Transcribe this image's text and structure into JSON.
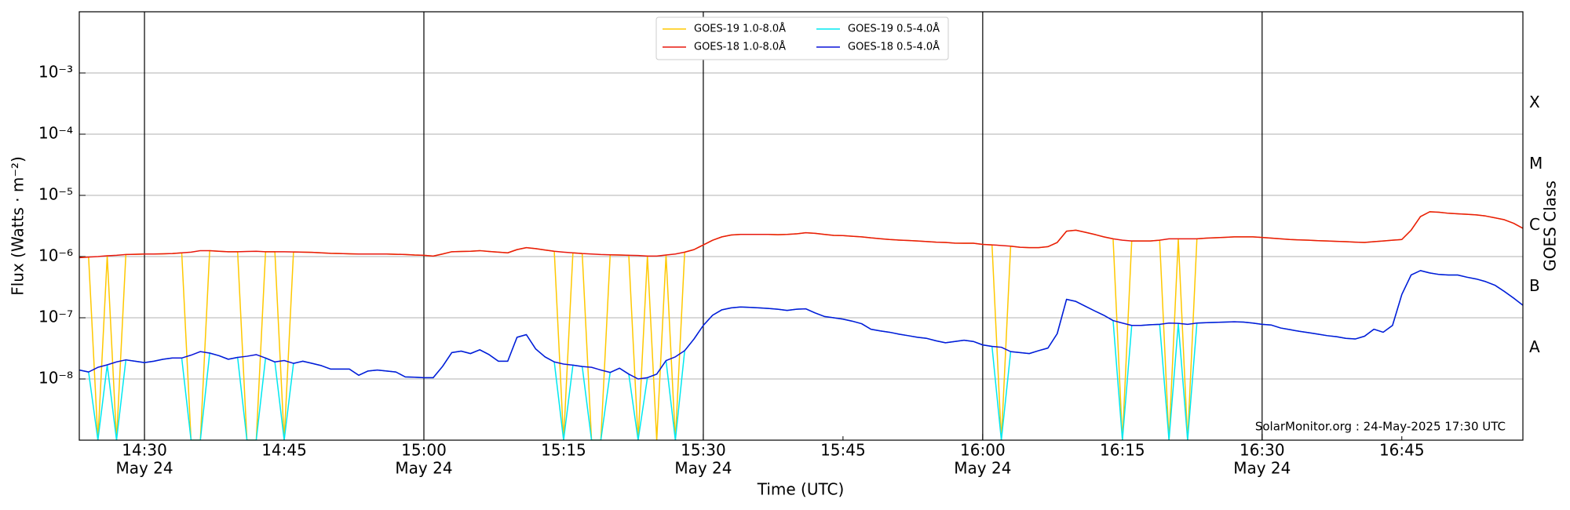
{
  "chart_data": {
    "type": "line",
    "xlabel": "Time (UTC)",
    "ylabel": "Flux (Watts · m⁻²)",
    "y2label": "GOES Class",
    "annotation": "SolarMonitor.org : 24-May-2025 17:30 UTC",
    "log_y": true,
    "grid": true,
    "legend": "upper center",
    "xlim": [
      "14:23",
      "16:58"
    ],
    "xticks": [
      "14:30",
      "14:45",
      "15:00",
      "15:15",
      "15:30",
      "15:45",
      "16:00",
      "16:15",
      "16:30",
      "16:45"
    ],
    "xtick_dates": [
      "May 24",
      null,
      "May 24",
      null,
      "May 24",
      null,
      "May 24",
      null,
      "May 24",
      null
    ],
    "ylim": [
      1e-09,
      0.01
    ],
    "yticks": [
      {
        "value": 1e-08,
        "label": "10⁻⁸"
      },
      {
        "value": 1e-07,
        "label": "10⁻⁷"
      },
      {
        "value": 1e-06,
        "label": "10⁻⁶"
      },
      {
        "value": 1e-05,
        "label": "10⁻⁵"
      },
      {
        "value": 0.0001,
        "label": "10⁻⁴"
      },
      {
        "value": 0.001,
        "label": "10⁻³"
      }
    ],
    "y2lim": [
      1e-09,
      0.01
    ],
    "y2ticks": [
      {
        "value": 3.2e-08,
        "label": "A"
      },
      {
        "value": 3.2e-07,
        "label": "B"
      },
      {
        "value": 3.2e-06,
        "label": "C"
      },
      {
        "value": 3.2e-05,
        "label": "M"
      },
      {
        "value": 0.00032,
        "label": "X"
      }
    ],
    "x": [
      "14:23",
      "14:24",
      "14:25",
      "14:26",
      "14:27",
      "14:28",
      "14:29",
      "14:30",
      "14:31",
      "14:32",
      "14:33",
      "14:34",
      "14:35",
      "14:36",
      "14:37",
      "14:38",
      "14:39",
      "14:40",
      "14:41",
      "14:42",
      "14:43",
      "14:44",
      "14:45",
      "14:46",
      "14:47",
      "14:48",
      "14:49",
      "14:50",
      "14:51",
      "14:52",
      "14:53",
      "14:54",
      "14:55",
      "14:56",
      "14:57",
      "14:58",
      "14:59",
      "15:00",
      "15:01",
      "15:02",
      "15:03",
      "15:04",
      "15:05",
      "15:06",
      "15:07",
      "15:08",
      "15:09",
      "15:10",
      "15:11",
      "15:12",
      "15:13",
      "15:14",
      "15:15",
      "15:16",
      "15:17",
      "15:18",
      "15:19",
      "15:20",
      "15:21",
      "15:22",
      "15:23",
      "15:24",
      "15:25",
      "15:26",
      "15:27",
      "15:28",
      "15:29",
      "15:30",
      "15:31",
      "15:32",
      "15:33",
      "15:34",
      "15:35",
      "15:36",
      "15:37",
      "15:38",
      "15:39",
      "15:40",
      "15:41",
      "15:42",
      "15:43",
      "15:44",
      "15:45",
      "15:46",
      "15:47",
      "15:48",
      "15:49",
      "15:50",
      "15:51",
      "15:52",
      "15:53",
      "15:54",
      "15:55",
      "15:56",
      "15:57",
      "15:58",
      "15:59",
      "16:00",
      "16:01",
      "16:02",
      "16:03",
      "16:04",
      "16:05",
      "16:06",
      "16:07",
      "16:08",
      "16:09",
      "16:10",
      "16:11",
      "16:12",
      "16:13",
      "16:14",
      "16:15",
      "16:16",
      "16:17",
      "16:18",
      "16:19",
      "16:20",
      "16:21",
      "16:22",
      "16:23",
      "16:24",
      "16:25",
      "16:26",
      "16:27",
      "16:28",
      "16:29",
      "16:30",
      "16:31",
      "16:32",
      "16:33",
      "16:34",
      "16:35",
      "16:36",
      "16:37",
      "16:38",
      "16:39",
      "16:40",
      "16:41",
      "16:42",
      "16:43",
      "16:44",
      "16:45",
      "16:46",
      "16:47",
      "16:48",
      "16:49",
      "16:50",
      "16:51",
      "16:52",
      "16:53",
      "16:54",
      "16:55",
      "16:56",
      "16:57",
      "16:58"
    ],
    "series": [
      {
        "name": "GOES-19 1.0-8.0Å",
        "color": "#ffc800",
        "values": [
          9.6e-07,
          9.8e-07,
          1e-09,
          1.03e-06,
          1e-09,
          1.08e-06,
          1.09e-06,
          1.1e-06,
          1.1e-06,
          1.11e-06,
          1.12e-06,
          1.15e-06,
          1e-09,
          1e-09,
          1.25e-06,
          1.22e-06,
          1.2e-06,
          1.2e-06,
          1e-09,
          1e-09,
          1.2e-06,
          1.2e-06,
          1e-09,
          1.19e-06,
          1.18e-06,
          1.17e-06,
          1.15e-06,
          1.13e-06,
          1.12e-06,
          1.11e-06,
          1.1e-06,
          1.1e-06,
          1.1e-06,
          1.1e-06,
          1.09e-06,
          1.08e-06,
          1.06e-06,
          1.05e-06,
          1.02e-06,
          1.1e-06,
          1.2e-06,
          1.21e-06,
          1.22e-06,
          1.25e-06,
          1.21e-06,
          1.18e-06,
          1.15e-06,
          1.3e-06,
          1.4e-06,
          1.35e-06,
          1.28e-06,
          1.22e-06,
          1e-09,
          1.15e-06,
          1.12e-06,
          1e-09,
          1e-09,
          1.07e-06,
          1.06e-06,
          1.05e-06,
          1e-09,
          1.02e-06,
          1e-09,
          1.06e-06,
          1e-09,
          1.18e-06,
          1.3e-06,
          1.55e-06,
          1.85e-06,
          2.1e-06,
          2.25e-06,
          2.3e-06,
          2.3e-06,
          2.3e-06,
          2.3e-06,
          2.28e-06,
          2.3e-06,
          2.35e-06,
          2.45e-06,
          2.4e-06,
          2.3e-06,
          2.22e-06,
          2.2e-06,
          2.15e-06,
          2.1e-06,
          2.02e-06,
          1.96e-06,
          1.9e-06,
          1.86e-06,
          1.83e-06,
          1.8e-06,
          1.76e-06,
          1.72e-06,
          1.7e-06,
          1.66e-06,
          1.65e-06,
          1.65e-06,
          1.58e-06,
          1.55e-06,
          1e-09,
          1.48e-06,
          1.42e-06,
          1.4e-06,
          1.4e-06,
          1.45e-06,
          1.7e-06,
          2.6e-06,
          2.7e-06,
          2.5e-06,
          2.3e-06,
          2.1e-06,
          1.95e-06,
          1e-09,
          1.8e-06,
          1.8e-06,
          1.8e-06,
          1.85e-06,
          1e-09,
          1.95e-06,
          1e-09,
          1.95e-06,
          2e-06,
          2.03e-06,
          2.06e-06,
          2.1e-06,
          2.1e-06,
          2.1e-06,
          2.05e-06,
          2e-06,
          1.95e-06,
          1.9e-06,
          1.87e-06,
          1.85e-06,
          1.82e-06,
          1.8e-06,
          1.77e-06,
          1.75e-06,
          1.72e-06,
          1.7e-06,
          1.75e-06,
          1.8e-06,
          1.85e-06,
          1.9e-06,
          2.7e-06,
          4.5e-06,
          5.4e-06,
          5.3e-06,
          5.1e-06,
          5e-06,
          4.9e-06,
          4.8e-06,
          4.6e-06,
          4.3e-06,
          4e-06,
          3.5e-06,
          2.9e-06
        ]
      },
      {
        "name": "GOES-18 1.0-8.0Å",
        "color": "#e8190f",
        "values": [
          9.6e-07,
          9.8e-07,
          1e-06,
          1.03e-06,
          1.05e-06,
          1.08e-06,
          1.09e-06,
          1.1e-06,
          1.1e-06,
          1.11e-06,
          1.12e-06,
          1.15e-06,
          1.18e-06,
          1.25e-06,
          1.25e-06,
          1.22e-06,
          1.2e-06,
          1.2e-06,
          1.21e-06,
          1.22e-06,
          1.2e-06,
          1.2e-06,
          1.2e-06,
          1.19e-06,
          1.18e-06,
          1.17e-06,
          1.15e-06,
          1.13e-06,
          1.12e-06,
          1.11e-06,
          1.1e-06,
          1.1e-06,
          1.1e-06,
          1.1e-06,
          1.09e-06,
          1.08e-06,
          1.06e-06,
          1.05e-06,
          1.02e-06,
          1.1e-06,
          1.2e-06,
          1.21e-06,
          1.22e-06,
          1.25e-06,
          1.21e-06,
          1.18e-06,
          1.15e-06,
          1.3e-06,
          1.4e-06,
          1.35e-06,
          1.28e-06,
          1.22e-06,
          1.18e-06,
          1.15e-06,
          1.12e-06,
          1.1e-06,
          1.08e-06,
          1.07e-06,
          1.06e-06,
          1.05e-06,
          1.04e-06,
          1.02e-06,
          1.02e-06,
          1.06e-06,
          1.1e-06,
          1.18e-06,
          1.3e-06,
          1.55e-06,
          1.85e-06,
          2.1e-06,
          2.25e-06,
          2.3e-06,
          2.3e-06,
          2.3e-06,
          2.3e-06,
          2.28e-06,
          2.3e-06,
          2.35e-06,
          2.45e-06,
          2.4e-06,
          2.3e-06,
          2.22e-06,
          2.2e-06,
          2.15e-06,
          2.1e-06,
          2.02e-06,
          1.96e-06,
          1.9e-06,
          1.86e-06,
          1.83e-06,
          1.8e-06,
          1.76e-06,
          1.72e-06,
          1.7e-06,
          1.66e-06,
          1.65e-06,
          1.65e-06,
          1.58e-06,
          1.55e-06,
          1.52e-06,
          1.48e-06,
          1.42e-06,
          1.4e-06,
          1.4e-06,
          1.45e-06,
          1.7e-06,
          2.6e-06,
          2.7e-06,
          2.5e-06,
          2.3e-06,
          2.1e-06,
          1.95e-06,
          1.85e-06,
          1.8e-06,
          1.8e-06,
          1.8e-06,
          1.85e-06,
          1.95e-06,
          1.95e-06,
          1.95e-06,
          1.95e-06,
          2e-06,
          2.03e-06,
          2.06e-06,
          2.1e-06,
          2.1e-06,
          2.1e-06,
          2.05e-06,
          2e-06,
          1.95e-06,
          1.9e-06,
          1.87e-06,
          1.85e-06,
          1.82e-06,
          1.8e-06,
          1.77e-06,
          1.75e-06,
          1.72e-06,
          1.7e-06,
          1.75e-06,
          1.8e-06,
          1.85e-06,
          1.9e-06,
          2.7e-06,
          4.5e-06,
          5.4e-06,
          5.3e-06,
          5.1e-06,
          5e-06,
          4.9e-06,
          4.8e-06,
          4.6e-06,
          4.3e-06,
          4e-06,
          3.5e-06,
          2.9e-06
        ]
      },
      {
        "name": "GOES-19 0.5-4.0Å",
        "color": "#00e8f0",
        "values": [
          1.4e-08,
          1.3e-08,
          1e-09,
          1.7e-08,
          1e-09,
          2.05e-08,
          1.95e-08,
          1.85e-08,
          1.95e-08,
          2.1e-08,
          2.2e-08,
          2.2e-08,
          1e-09,
          1e-09,
          2.65e-08,
          2.4e-08,
          2.1e-08,
          2.25e-08,
          1e-09,
          1e-09,
          2.2e-08,
          1.9e-08,
          1e-09,
          1.8e-08,
          1.95e-08,
          1.8e-08,
          1.65e-08,
          1.45e-08,
          1.45e-08,
          1.45e-08,
          1.15e-08,
          1.35e-08,
          1.4e-08,
          1.35e-08,
          1.3e-08,
          1.08e-08,
          1.07e-08,
          1.05e-08,
          1.05e-08,
          1.6e-08,
          2.7e-08,
          2.85e-08,
          2.6e-08,
          3e-08,
          2.5e-08,
          1.95e-08,
          1.95e-08,
          4.8e-08,
          5.3e-08,
          3.1e-08,
          2.3e-08,
          1.9e-08,
          1e-09,
          1.68e-08,
          1.6e-08,
          1e-09,
          1e-09,
          1.28e-08,
          1.5e-08,
          1.2e-08,
          1e-09,
          1.05e-08,
          1.2e-08,
          2e-08,
          1e-09,
          2.9e-08,
          4.5e-08,
          7.5e-08,
          1.1e-07,
          1.35e-07,
          1.45e-07,
          1.5e-07,
          1.48e-07,
          1.45e-07,
          1.42e-07,
          1.38e-07,
          1.32e-07,
          1.38e-07,
          1.4e-07,
          1.2e-07,
          1.05e-07,
          1e-07,
          9.5e-08,
          8.8e-08,
          8e-08,
          6.5e-08,
          6.1e-08,
          5.8e-08,
          5.4e-08,
          5.1e-08,
          4.8e-08,
          4.6e-08,
          4.2e-08,
          3.9e-08,
          4.1e-08,
          4.3e-08,
          4.1e-08,
          3.6e-08,
          3.4e-08,
          1e-09,
          2.8e-08,
          2.7e-08,
          2.6e-08,
          2.9e-08,
          3.2e-08,
          5.5e-08,
          2e-07,
          1.85e-07,
          1.55e-07,
          1.3e-07,
          1.1e-07,
          9e-08,
          1e-09,
          7.5e-08,
          7.5e-08,
          7.7e-08,
          7.8e-08,
          1e-09,
          8.1e-08,
          1e-09,
          8.2e-08,
          8.3e-08,
          8.4e-08,
          8.5e-08,
          8.6e-08,
          8.5e-08,
          8.2e-08,
          7.8e-08,
          7.6e-08,
          6.8e-08,
          6.4e-08,
          6e-08,
          5.7e-08,
          5.4e-08,
          5.1e-08,
          4.9e-08,
          4.6e-08,
          4.5e-08,
          5e-08,
          6.5e-08,
          5.8e-08,
          7.5e-08,
          2.4e-07,
          5e-07,
          5.9e-07,
          5.4e-07,
          5.1e-07,
          5e-07,
          5e-07,
          4.6e-07,
          4.3e-07,
          3.9e-07,
          3.4e-07,
          2.7e-07,
          2.1e-07,
          1.6e-07
        ]
      },
      {
        "name": "GOES-18 0.5-4.0Å",
        "color": "#0a14d8",
        "values": [
          1.4e-08,
          1.3e-08,
          1.55e-08,
          1.7e-08,
          1.9e-08,
          2.05e-08,
          1.95e-08,
          1.85e-08,
          1.95e-08,
          2.1e-08,
          2.2e-08,
          2.2e-08,
          2.45e-08,
          2.8e-08,
          2.65e-08,
          2.4e-08,
          2.1e-08,
          2.25e-08,
          2.35e-08,
          2.5e-08,
          2.2e-08,
          1.9e-08,
          2e-08,
          1.8e-08,
          1.95e-08,
          1.8e-08,
          1.65e-08,
          1.45e-08,
          1.45e-08,
          1.45e-08,
          1.15e-08,
          1.35e-08,
          1.4e-08,
          1.35e-08,
          1.3e-08,
          1.08e-08,
          1.07e-08,
          1.05e-08,
          1.05e-08,
          1.6e-08,
          2.7e-08,
          2.85e-08,
          2.6e-08,
          3e-08,
          2.5e-08,
          1.95e-08,
          1.95e-08,
          4.8e-08,
          5.3e-08,
          3.1e-08,
          2.3e-08,
          1.9e-08,
          1.75e-08,
          1.68e-08,
          1.6e-08,
          1.55e-08,
          1.4e-08,
          1.28e-08,
          1.5e-08,
          1.2e-08,
          1e-08,
          1.05e-08,
          1.2e-08,
          2e-08,
          2.3e-08,
          2.9e-08,
          4.5e-08,
          7.5e-08,
          1.1e-07,
          1.35e-07,
          1.45e-07,
          1.5e-07,
          1.48e-07,
          1.45e-07,
          1.42e-07,
          1.38e-07,
          1.32e-07,
          1.38e-07,
          1.4e-07,
          1.2e-07,
          1.05e-07,
          1e-07,
          9.5e-08,
          8.8e-08,
          8e-08,
          6.5e-08,
          6.1e-08,
          5.8e-08,
          5.4e-08,
          5.1e-08,
          4.8e-08,
          4.6e-08,
          4.2e-08,
          3.9e-08,
          4.1e-08,
          4.3e-08,
          4.1e-08,
          3.6e-08,
          3.4e-08,
          3.3e-08,
          2.8e-08,
          2.7e-08,
          2.6e-08,
          2.9e-08,
          3.2e-08,
          5.5e-08,
          2e-07,
          1.85e-07,
          1.55e-07,
          1.3e-07,
          1.1e-07,
          9e-08,
          8.2e-08,
          7.5e-08,
          7.5e-08,
          7.7e-08,
          7.8e-08,
          8.2e-08,
          8.1e-08,
          7.8e-08,
          8.2e-08,
          8.3e-08,
          8.4e-08,
          8.5e-08,
          8.6e-08,
          8.5e-08,
          8.2e-08,
          7.8e-08,
          7.6e-08,
          6.8e-08,
          6.4e-08,
          6e-08,
          5.7e-08,
          5.4e-08,
          5.1e-08,
          4.9e-08,
          4.6e-08,
          4.5e-08,
          5e-08,
          6.5e-08,
          5.8e-08,
          7.5e-08,
          2.4e-07,
          5e-07,
          5.9e-07,
          5.4e-07,
          5.1e-07,
          5e-07,
          5e-07,
          4.6e-07,
          4.3e-07,
          3.9e-07,
          3.4e-07,
          2.7e-07,
          2.1e-07,
          1.6e-07
        ]
      }
    ]
  }
}
